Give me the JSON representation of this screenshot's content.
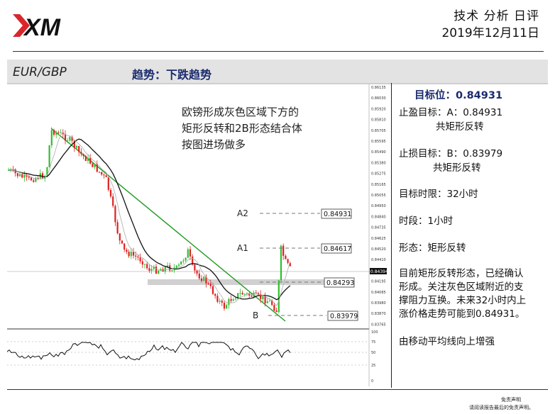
{
  "header": {
    "logo_text": "XM",
    "doc_type": "技术 分析 日评",
    "date": "2019年12月11日"
  },
  "title_bar": {
    "pair": "EUR/GBP",
    "trend": "趋势：下跌趋势"
  },
  "chart": {
    "annotation_lines": [
      "欧镑形成灰色区域下方的",
      "矩形反转和2B形态结合体",
      "按图进场做多"
    ],
    "level_labels": [
      "A2",
      "A1",
      "B"
    ],
    "price_boxes": [
      "0.84931",
      "0.84617",
      "0.84293",
      "0.83979"
    ],
    "current_price": "0.84394",
    "axis_ticks": [
      "0.86135",
      "0.86030",
      "0.85920",
      "0.85810",
      "0.85705",
      "0.85595",
      "0.85490",
      "0.85380",
      "0.85275",
      "0.85165",
      "0.85055",
      "0.84950",
      "0.84840",
      "0.84735",
      "0.84625",
      "0.84520",
      "0.84410",
      "0.84305",
      "0.84195",
      "0.84085",
      "0.83980",
      "0.83870",
      "0.83765"
    ],
    "osc_ticks": [
      "100",
      "75",
      "50",
      "25",
      "0"
    ]
  },
  "side_panel": {
    "target_label": "目标位：0.84931",
    "tp_line1": "止盈目标：A：0.84931",
    "tp_line2": "共矩形反转",
    "sl_line1": "止损目标：B：0.83979",
    "sl_line2": "共矩形反转",
    "time_limit": "目标时限：32小时",
    "timeframe": "时段：1小时",
    "pattern": "形态：矩形反转",
    "analysis": [
      "目前矩形反转形态，已经确认",
      "形成。关注灰色区域附近的支",
      "撑阻力互换。未来32小时内上",
      "涨价格走势可能到0.84931。"
    ],
    "note": "由移动平均线向上增强"
  },
  "footer": {
    "line1": "免责声明",
    "line2": "请阅读报告最后的免责声明。"
  },
  "colors": {
    "bull": "#2fbf2f",
    "bear": "#e02020",
    "trendline": "#1f9a1f",
    "accent": "#1a2b6e",
    "zone": "#d0d0d0"
  }
}
